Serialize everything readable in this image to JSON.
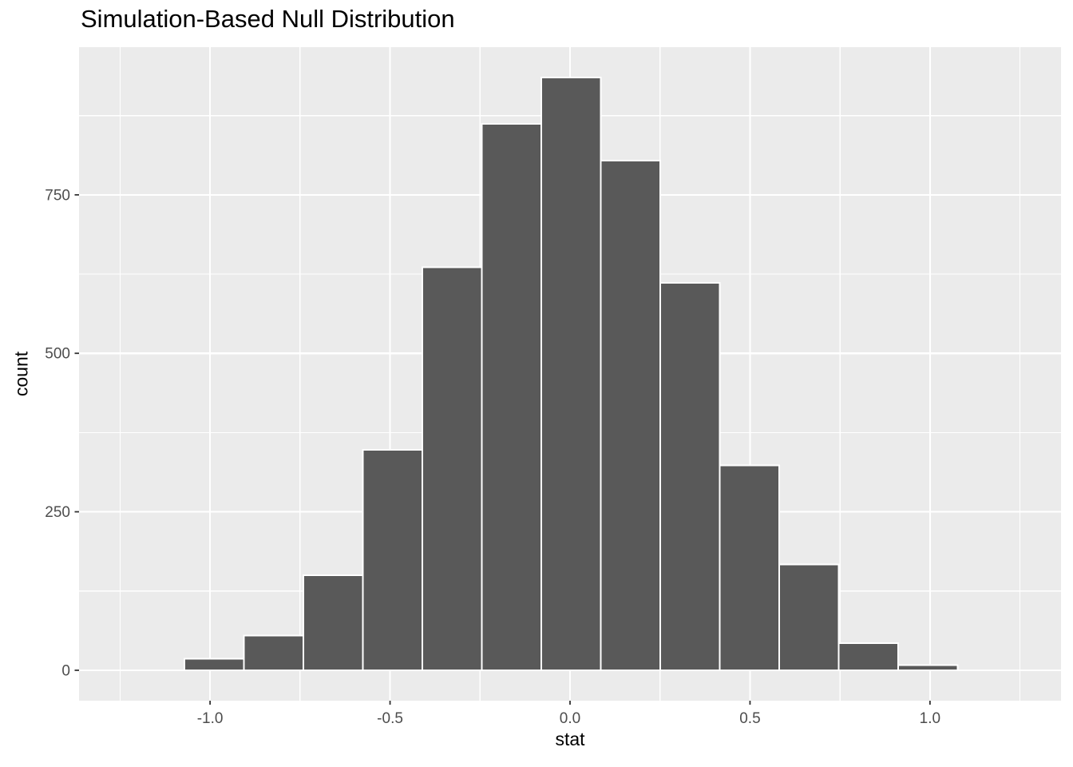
{
  "chart_data": {
    "type": "bar",
    "subtype": "histogram",
    "title": "Simulation-Based Null Distribution",
    "xlabel": "stat",
    "ylabel": "count",
    "bins": {
      "start": -1.071,
      "width": 0.1652,
      "count": 13
    },
    "values": [
      18,
      55,
      150,
      348,
      636,
      862,
      935,
      804,
      611,
      323,
      167,
      43,
      8
    ],
    "x_ticks": [
      -1.0,
      -0.5,
      0.0,
      0.5,
      1.0
    ],
    "x_tick_labels": [
      "-1.0",
      "-0.5",
      "0.0",
      "0.5",
      "1.0"
    ],
    "x_minor_ticks": [
      -1.25,
      -0.75,
      -0.25,
      0.25,
      0.75,
      1.25
    ],
    "y_ticks": [
      0,
      250,
      500,
      750
    ],
    "y_tick_labels": [
      "0",
      "250",
      "500",
      "750"
    ],
    "y_minor_ticks": [
      125,
      375,
      625,
      875
    ],
    "xlim": [
      -1.364,
      1.364
    ],
    "ylim": [
      -48,
      983
    ],
    "grid": "major+minor",
    "legend": "none",
    "colors": {
      "bar_fill": "#595959",
      "bar_stroke": "#ffffff",
      "panel_bg": "#ebebeb",
      "grid": "#ffffff",
      "tick_label": "#4d4d4d",
      "tick_mark": "#333333",
      "axis_title": "#000000",
      "title": "#000000",
      "page_bg": "#ffffff"
    }
  }
}
